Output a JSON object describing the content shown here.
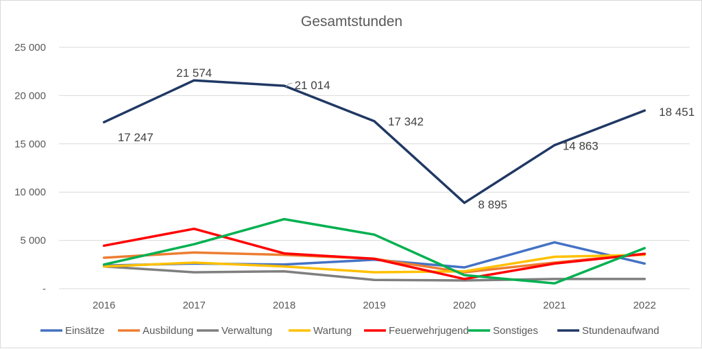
{
  "chart_data": {
    "type": "line",
    "title": "Gesamtstunden",
    "xlabel": "",
    "ylabel": "",
    "categories": [
      "2016",
      "2017",
      "2018",
      "2019",
      "2020",
      "2021",
      "2022"
    ],
    "ylim": [
      0,
      25000
    ],
    "y_ticks": [
      0,
      5000,
      10000,
      15000,
      20000,
      25000
    ],
    "y_tick_labels": [
      "-",
      "5 000",
      "10 000",
      "15 000",
      "20 000",
      "25 000"
    ],
    "grid": true,
    "legend_position": "bottom",
    "series": [
      {
        "name": "Einsätze",
        "color": "#4472C4",
        "values": [
          2400,
          2600,
          2500,
          3000,
          2200,
          4800,
          2600
        ]
      },
      {
        "name": "Ausbildung",
        "color": "#ED7D31",
        "values": [
          3200,
          3750,
          3500,
          3100,
          1700,
          2700,
          3600
        ]
      },
      {
        "name": "Verwaltung",
        "color": "#7F7F7F",
        "values": [
          2300,
          1700,
          1800,
          900,
          850,
          1000,
          1000
        ]
      },
      {
        "name": "Wartung",
        "color": "#FFC000",
        "values": [
          2300,
          2700,
          2300,
          1700,
          1800,
          3300,
          3500
        ]
      },
      {
        "name": "Feuerwehrjugend",
        "color": "#FF0000",
        "values": [
          4450,
          6200,
          3650,
          3100,
          1000,
          2600,
          3600
        ]
      },
      {
        "name": "Sonstiges",
        "color": "#00B050",
        "values": [
          2500,
          4600,
          7200,
          5600,
          1400,
          550,
          4200
        ]
      },
      {
        "name": "Stundenaufwand",
        "color": "#203864",
        "values": [
          17247,
          21574,
          21014,
          17342,
          8895,
          14863,
          18451
        ],
        "data_labels": [
          "17 247",
          "21 574",
          "21 014",
          "17 342",
          "8 895",
          "14 863",
          "18 451"
        ]
      }
    ]
  }
}
